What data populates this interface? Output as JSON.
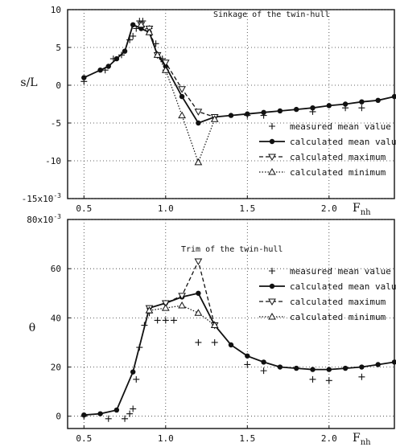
{
  "chart_data": [
    {
      "type": "line",
      "title": "Sinkage of the twin-hull",
      "xlabel": "F",
      "xlabel_sub": "nh",
      "ylabel": "s/L",
      "xlim": [
        0.4,
        2.4
      ],
      "ylim": [
        -15,
        10
      ],
      "x_ticks": [
        "0.5",
        "1.0",
        "1.5",
        "2.0"
      ],
      "y_ticks": [
        "10",
        "5",
        "0",
        "-5",
        "-10",
        "-15x10"
      ],
      "y_tick_exp": "-3",
      "grid": "dotted",
      "legend_position": "right",
      "series": [
        {
          "name": "measured mean value",
          "marker": "plus",
          "x": [
            0.5,
            0.63,
            0.68,
            0.73,
            0.78,
            0.8,
            0.82,
            0.84,
            0.86,
            0.9,
            0.94,
            0.98,
            1.0,
            1.5,
            1.6,
            1.9,
            2.1,
            2.2
          ],
          "y": [
            0.5,
            2.0,
            3.5,
            4.0,
            6.0,
            6.5,
            7.5,
            8.5,
            8.5,
            7.5,
            5.5,
            3.5,
            2.0,
            -4.0,
            -4.0,
            -3.5,
            -3.0,
            -3.0
          ]
        },
        {
          "name": "calculated mean value",
          "marker": "filled-circle",
          "x": [
            0.5,
            0.6,
            0.65,
            0.7,
            0.75,
            0.8,
            0.85,
            0.9,
            0.95,
            1.0,
            1.1,
            1.2,
            1.3,
            1.4,
            1.5,
            1.6,
            1.7,
            1.8,
            1.9,
            2.0,
            2.1,
            2.2,
            2.3,
            2.4
          ],
          "y": [
            1.0,
            2.0,
            2.5,
            3.5,
            4.5,
            8.0,
            7.5,
            7.0,
            4.0,
            2.5,
            -1.5,
            -5.0,
            -4.2,
            -4.0,
            -3.8,
            -3.6,
            -3.4,
            -3.2,
            -3.0,
            -2.7,
            -2.5,
            -2.2,
            -2.0,
            -1.5
          ]
        },
        {
          "name": "calculated maximum",
          "marker": "triangle-down",
          "x": [
            0.85,
            0.9,
            0.95,
            1.0,
            1.1,
            1.2,
            1.3
          ],
          "y": [
            8.0,
            7.5,
            4.0,
            3.0,
            -0.5,
            -3.5,
            -4.2
          ]
        },
        {
          "name": "calculated minimum",
          "marker": "triangle-up",
          "x": [
            0.85,
            0.9,
            0.95,
            1.0,
            1.1,
            1.2,
            1.3
          ],
          "y": [
            8.0,
            7.0,
            4.0,
            2.0,
            -4.0,
            -10.2,
            -4.5
          ]
        }
      ]
    },
    {
      "type": "line",
      "title": "Trim of the twin-hull",
      "xlabel": "F",
      "xlabel_sub": "nh",
      "ylabel": "θ",
      "xlim": [
        0.4,
        2.4
      ],
      "ylim": [
        -5,
        80
      ],
      "x_ticks": [
        "0.5",
        "1.0",
        "1.5",
        "2.0"
      ],
      "y_ticks": [
        "80x10",
        "60",
        "40",
        "20",
        "0"
      ],
      "y_tick_exp": "-3",
      "grid": "dotted",
      "legend_position": "top-right",
      "series": [
        {
          "name": "measured mean value",
          "marker": "plus",
          "x": [
            0.5,
            0.65,
            0.75,
            0.78,
            0.8,
            0.82,
            0.84,
            0.87,
            0.9,
            0.95,
            1.0,
            1.05,
            1.2,
            1.3,
            1.5,
            1.6,
            1.9,
            2.0,
            2.2
          ],
          "y": [
            0.0,
            -1.0,
            -1.0,
            1.0,
            3.0,
            15.0,
            28.0,
            37.0,
            42.0,
            39.0,
            39.0,
            39.0,
            30.0,
            30.0,
            21.0,
            18.5,
            15.0,
            14.5,
            16.0
          ]
        },
        {
          "name": "calculated mean value",
          "marker": "filled-circle",
          "x": [
            0.5,
            0.6,
            0.7,
            0.8,
            0.9,
            1.0,
            1.1,
            1.2,
            1.3,
            1.4,
            1.5,
            1.6,
            1.7,
            1.8,
            1.9,
            2.0,
            2.1,
            2.2,
            2.3,
            2.4
          ],
          "y": [
            0.5,
            1.0,
            2.5,
            18.0,
            44.0,
            46.0,
            48.5,
            50.0,
            37.0,
            29.0,
            24.5,
            22.0,
            20.0,
            19.5,
            19.0,
            19.0,
            19.5,
            20.0,
            21.0,
            22.0
          ]
        },
        {
          "name": "calculated maximum",
          "marker": "triangle-down",
          "x": [
            0.9,
            1.0,
            1.1,
            1.2,
            1.3
          ],
          "y": [
            44.0,
            46.0,
            49.0,
            63.0,
            37.0
          ]
        },
        {
          "name": "calculated minimum",
          "marker": "triangle-up",
          "x": [
            0.9,
            1.0,
            1.1,
            1.2,
            1.3
          ],
          "y": [
            43.0,
            44.0,
            45.0,
            42.0,
            37.0
          ]
        }
      ]
    }
  ]
}
